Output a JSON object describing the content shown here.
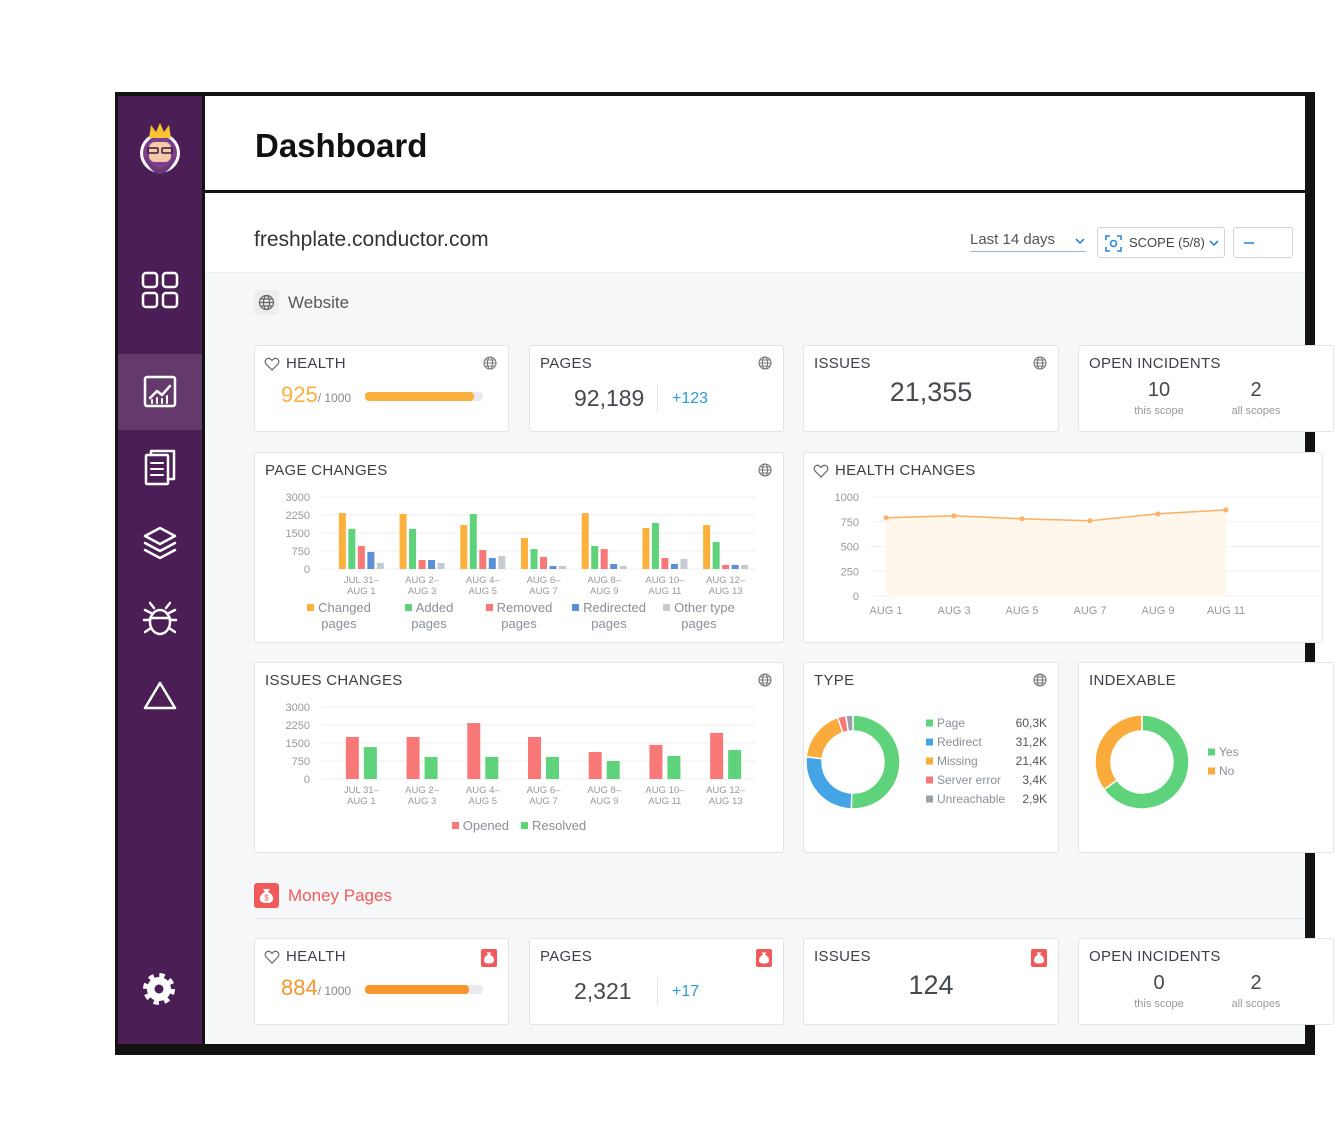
{
  "header": {
    "title": "Dashboard"
  },
  "site": "freshplate.conductor.com",
  "controls": {
    "date_range": "Last 14 days",
    "scope": "SCOPE (5/8)"
  },
  "sections": [
    {
      "title": "Website",
      "cards": {
        "health": {
          "title": "HEALTH",
          "value": 925,
          "max": 1000,
          "max_label": "/ 1000"
        },
        "pages": {
          "title": "PAGES",
          "value": "92,189",
          "delta": "+123"
        },
        "issues": {
          "title": "ISSUES",
          "value": "21,355"
        },
        "incidents": {
          "title": "OPEN INCIDENTS",
          "items": [
            {
              "value": "10",
              "label": "this scope"
            },
            {
              "value": "2",
              "label": "all scopes"
            }
          ]
        }
      }
    },
    {
      "title": "Money Pages",
      "cards": {
        "health": {
          "title": "HEALTH",
          "value": 884,
          "max": 1000,
          "max_label": "/ 1000"
        },
        "pages": {
          "title": "PAGES",
          "value": "2,321",
          "delta": "+17"
        },
        "issues": {
          "title": "ISSUES",
          "value": "124"
        },
        "incidents": {
          "title": "OPEN INCIDENTS",
          "items": [
            {
              "value": "0",
              "label": "this scope"
            },
            {
              "value": "2",
              "label": "all scopes"
            }
          ]
        }
      }
    }
  ],
  "chart_data": [
    {
      "type": "bar",
      "title": "PAGE CHANGES",
      "categories": [
        [
          "JUL 31–",
          "AUG 1"
        ],
        [
          "AUG 2–",
          "AUG 3"
        ],
        [
          "AUG 4–",
          "AUG 5"
        ],
        [
          "AUG 6–",
          "AUG 7"
        ],
        [
          "AUG 8–",
          "AUG 9"
        ],
        [
          "AUG 10–",
          "AUG 11"
        ],
        [
          "AUG 12–",
          "AUG 13"
        ]
      ],
      "series": [
        {
          "name": "Changed pages",
          "color": "#fbb13c",
          "values": [
            2330,
            2290,
            1830,
            1290,
            2330,
            1710,
            1830
          ]
        },
        {
          "name": "Added pages",
          "color": "#5fd37b",
          "values": [
            1670,
            1670,
            2290,
            830,
            960,
            1920,
            1125
          ]
        },
        {
          "name": "Removed pages",
          "color": "#f87878",
          "values": [
            960,
            375,
            790,
            500,
            830,
            460,
            170
          ]
        },
        {
          "name": "Redirected pages",
          "color": "#5b8fd6",
          "values": [
            710,
            375,
            460,
            125,
            210,
            210,
            170
          ]
        },
        {
          "name": "Other type pages",
          "color": "#c5cad3",
          "values": [
            250,
            250,
            540,
            125,
            125,
            420,
            170
          ]
        }
      ],
      "ylim": [
        0,
        3000
      ],
      "yticks": [
        0,
        750,
        1500,
        2250,
        3000
      ],
      "grid": true,
      "legend": "bottom"
    },
    {
      "type": "line",
      "title": "HEALTH CHANGES",
      "categories": [
        "AUG 1",
        "AUG 3",
        "AUG 5",
        "AUG 7",
        "AUG 9",
        "AUG 11"
      ],
      "values": [
        790,
        810,
        780,
        760,
        830,
        870
      ],
      "color": "#f9b36b",
      "ylim": [
        0,
        1000
      ],
      "yticks": [
        0,
        250,
        500,
        750,
        1000
      ],
      "grid": true
    },
    {
      "type": "bar",
      "title": "ISSUES CHANGES",
      "categories": [
        [
          "JUL 31–",
          "AUG 1"
        ],
        [
          "AUG 2–",
          "AUG 3"
        ],
        [
          "AUG 4–",
          "AUG 5"
        ],
        [
          "AUG 6–",
          "AUG 7"
        ],
        [
          "AUG 8–",
          "AUG 9"
        ],
        [
          "AUG 10–",
          "AUG 11"
        ],
        [
          "AUG 12–",
          "AUG 13"
        ]
      ],
      "series": [
        {
          "name": "Opened",
          "color": "#f87878",
          "values": [
            1750,
            1750,
            2330,
            1750,
            1125,
            1420,
            1920
          ]
        },
        {
          "name": "Resolved",
          "color": "#5fd37b",
          "values": [
            1330,
            920,
            920,
            920,
            750,
            960,
            1210
          ]
        }
      ],
      "ylim": [
        0,
        3000
      ],
      "yticks": [
        0,
        750,
        1500,
        2250,
        3000
      ],
      "grid": true,
      "legend": "bottom"
    },
    {
      "type": "donut",
      "title": "TYPE",
      "categories": [
        "Page",
        "Redirect",
        "Missing",
        "Server error",
        "Unreachable"
      ],
      "values": [
        60300,
        31200,
        21400,
        3400,
        2900
      ],
      "value_labels": [
        "60,3K",
        "31,2K",
        "21,4K",
        "3,4K",
        "2,9K"
      ],
      "colors": [
        "#5fd37b",
        "#45a4e6",
        "#fbab3c",
        "#f87878",
        "#9ba1ab"
      ]
    },
    {
      "type": "donut",
      "title": "INDEXABLE",
      "categories": [
        "Yes",
        "No"
      ],
      "values": [
        65,
        35
      ],
      "colors": [
        "#5fd37b",
        "#fbab3c"
      ]
    }
  ]
}
